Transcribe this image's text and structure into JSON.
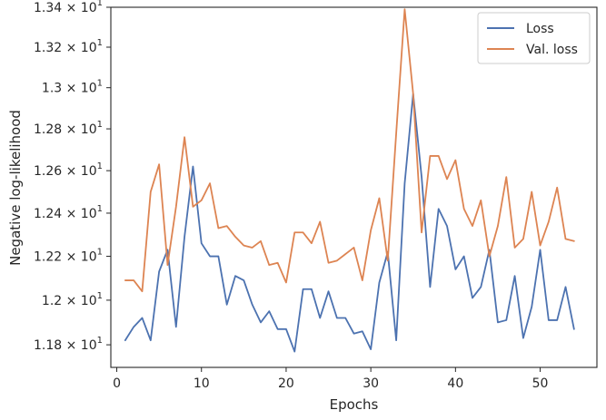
{
  "chart_data": {
    "type": "line",
    "xlabel": "Epochs",
    "ylabel": "Negative log-likelihood",
    "xlim": [
      -0.7,
      56.7
    ],
    "ylim": [
      11.7,
      13.4
    ],
    "xticks": [
      0,
      10,
      20,
      30,
      40,
      50
    ],
    "xtick_labels": [
      "0",
      "10",
      "20",
      "30",
      "40",
      "50"
    ],
    "yticks": [
      11.8,
      12.0,
      12.2,
      12.4,
      12.6,
      12.8,
      13.0,
      13.2,
      13.4
    ],
    "ytick_labels": [
      {
        "mantissa": "1.18",
        "exponent": "1"
      },
      {
        "mantissa": "1.2",
        "exponent": "1"
      },
      {
        "mantissa": "1.22",
        "exponent": "1"
      },
      {
        "mantissa": "1.24",
        "exponent": "1"
      },
      {
        "mantissa": "1.26",
        "exponent": "1"
      },
      {
        "mantissa": "1.28",
        "exponent": "1"
      },
      {
        "mantissa": "1.3",
        "exponent": "1"
      },
      {
        "mantissa": "1.32",
        "exponent": "1"
      },
      {
        "mantissa": "1.34",
        "exponent": "1"
      }
    ],
    "y_scale": "log",
    "grid": false,
    "legend_position": "top-right",
    "x": [
      1,
      2,
      3,
      4,
      5,
      6,
      7,
      8,
      9,
      10,
      11,
      12,
      13,
      14,
      15,
      16,
      17,
      18,
      19,
      20,
      21,
      22,
      23,
      24,
      25,
      26,
      27,
      28,
      29,
      30,
      31,
      32,
      33,
      34,
      35,
      36,
      37,
      38,
      39,
      40,
      41,
      42,
      43,
      44,
      45,
      46,
      47,
      48,
      49,
      50,
      51,
      52,
      53,
      54
    ],
    "series": [
      {
        "name": "Loss",
        "color": "#4c72b0",
        "values": [
          11.82,
          11.88,
          11.92,
          11.82,
          12.13,
          12.23,
          11.88,
          12.29,
          12.62,
          12.26,
          12.2,
          12.2,
          11.98,
          12.11,
          12.09,
          11.98,
          11.9,
          11.95,
          11.87,
          11.87,
          11.77,
          12.05,
          12.05,
          11.92,
          12.04,
          11.92,
          11.92,
          11.85,
          11.86,
          11.78,
          12.08,
          12.22,
          11.82,
          12.54,
          12.97,
          12.57,
          12.06,
          12.42,
          12.34,
          12.14,
          12.2,
          12.01,
          12.06,
          12.23,
          11.9,
          11.91,
          12.11,
          11.83,
          11.97,
          12.23,
          11.91,
          11.91,
          12.06,
          11.87
        ]
      },
      {
        "name": "Val. loss",
        "color": "#dd8452",
        "values": [
          12.09,
          12.09,
          12.04,
          12.5,
          12.63,
          12.16,
          12.43,
          12.76,
          12.43,
          12.46,
          12.54,
          12.33,
          12.34,
          12.29,
          12.25,
          12.24,
          12.27,
          12.16,
          12.17,
          12.08,
          12.31,
          12.31,
          12.26,
          12.36,
          12.17,
          12.18,
          12.21,
          12.24,
          12.09,
          12.32,
          12.47,
          12.18,
          12.78,
          13.39,
          12.97,
          12.31,
          12.67,
          12.67,
          12.56,
          12.65,
          12.42,
          12.34,
          12.46,
          12.2,
          12.34,
          12.57,
          12.24,
          12.28,
          12.5,
          12.25,
          12.36,
          12.52,
          12.28,
          12.27
        ]
      }
    ]
  }
}
